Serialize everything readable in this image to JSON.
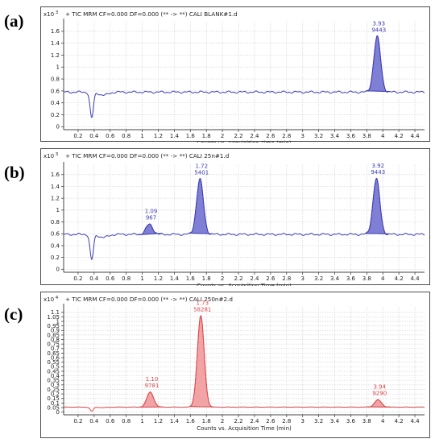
{
  "panels": [
    {
      "label": "(a)",
      "title": "+ TIC MRM CF=0.000 DF=0.000 (** -> **) CALI BLANK#1.d"
    },
    {
      "label": "(b)",
      "title": "+ TIC MRM CF=0.000 DF=0.000 (** -> **) CALI 25n#1.d"
    },
    {
      "label": "(c)",
      "title": "+ TIC MRM CF=0.000 DF=0.000 (** -> **) CALI 250n#2.d"
    }
  ],
  "chart_data": [
    {
      "type": "line",
      "title": "+ TIC MRM CF=0.000 DF=0.000 (** -> **) CALI BLANK#1.d",
      "xlabel": "Counts vs. Acquisition Time (min)",
      "ylabel": "",
      "y_multiplier": "x10",
      "y_exponent": "3",
      "xlim": [
        0.02,
        4.52
      ],
      "ylim": [
        -0.05,
        1.76
      ],
      "x_ticks": [
        "0.2",
        "0.4",
        "0.6",
        "0.8",
        "1",
        "1.2",
        "1.4",
        "1.6",
        "1.8",
        "2",
        "2.2",
        "2.4",
        "2.6",
        "2.8",
        "3",
        "3.2",
        "3.4",
        "3.6",
        "3.8",
        "4",
        "4.2",
        "4.4"
      ],
      "y_ticks": [
        "0",
        "0.2",
        "0.4",
        "0.6",
        "0.8",
        "1",
        "1.2",
        "1.4",
        "1.6"
      ],
      "color": "#3c3cb4",
      "fill": "#7f7fd6",
      "baseline": 0.58,
      "dip": {
        "x": 0.37,
        "y": 0.15
      },
      "peaks": [
        {
          "rt": 3.93,
          "height": 1.51,
          "area_label": "9443",
          "rt_label": "3.93"
        }
      ]
    },
    {
      "type": "line",
      "title": "+ TIC MRM CF=0.000 DF=0.000 (** -> **) CALI 25n#1.d",
      "xlabel": "Counts vs. Acquisition Time (min)",
      "ylabel": "",
      "y_multiplier": "x10",
      "y_exponent": "3",
      "xlim": [
        0.02,
        4.52
      ],
      "ylim": [
        -0.05,
        1.76
      ],
      "x_ticks": [
        "0.2",
        "0.4",
        "0.6",
        "0.8",
        "1",
        "1.2",
        "1.4",
        "1.6",
        "1.8",
        "2",
        "2.2",
        "2.4",
        "2.6",
        "2.8",
        "3",
        "3.2",
        "3.4",
        "3.6",
        "3.8",
        "4",
        "4.2",
        "4.4"
      ],
      "y_ticks": [
        "0",
        "0.2",
        "0.4",
        "0.6",
        "0.8",
        "1",
        "1.2",
        "1.4",
        "1.6"
      ],
      "color": "#3c3cb4",
      "fill": "#7f7fd6",
      "baseline": 0.59,
      "dip": {
        "x": 0.37,
        "y": 0.16
      },
      "peaks": [
        {
          "rt": 1.09,
          "height": 0.76,
          "area_label": "967",
          "rt_label": "1.09"
        },
        {
          "rt": 1.72,
          "height": 1.52,
          "area_label": "5401",
          "rt_label": "1.72"
        },
        {
          "rt": 3.92,
          "height": 1.53,
          "area_label": "9443",
          "rt_label": "3.92"
        }
      ]
    },
    {
      "type": "line",
      "title": "+ TIC MRM CF=0.000 DF=0.000 (** -> **) CALI 250n#2.d",
      "xlabel": "Counts vs. Acquisition Time (min)",
      "ylabel": "",
      "y_multiplier": "x10",
      "y_exponent": "4",
      "xlim": [
        0.02,
        4.52
      ],
      "ylim": [
        -0.03,
        1.16
      ],
      "x_ticks": [
        "0.2",
        "0.4",
        "0.6",
        "0.8",
        "1",
        "1.2",
        "1.4",
        "1.6",
        "1.8",
        "2",
        "2.2",
        "2.4",
        "2.6",
        "2.8",
        "3",
        "3.2",
        "3.4",
        "3.6",
        "3.8",
        "4",
        "4.2",
        "4.4"
      ],
      "y_ticks": [
        "0",
        "0.05",
        "0.1",
        "0.15",
        "0.2",
        "0.25",
        "0.3",
        "0.35",
        "0.4",
        "0.45",
        "0.5",
        "0.55",
        "0.6",
        "0.65",
        "0.7",
        "0.75",
        "0.8",
        "0.85",
        "0.9",
        "0.95",
        "1",
        "1.05",
        "1.1"
      ],
      "color": "#d9484a",
      "fill": "#f2a3a5",
      "baseline": 0.055,
      "dip": {
        "x": 0.37,
        "y": 0.01
      },
      "peaks": [
        {
          "rt": 1.1,
          "height": 0.22,
          "area_label": "9781",
          "rt_label": "1.10"
        },
        {
          "rt": 1.73,
          "height": 1.06,
          "area_label": "58281",
          "rt_label": "1.73"
        },
        {
          "rt": 3.94,
          "height": 0.135,
          "area_label": "9290",
          "rt_label": "3.94"
        }
      ]
    }
  ]
}
